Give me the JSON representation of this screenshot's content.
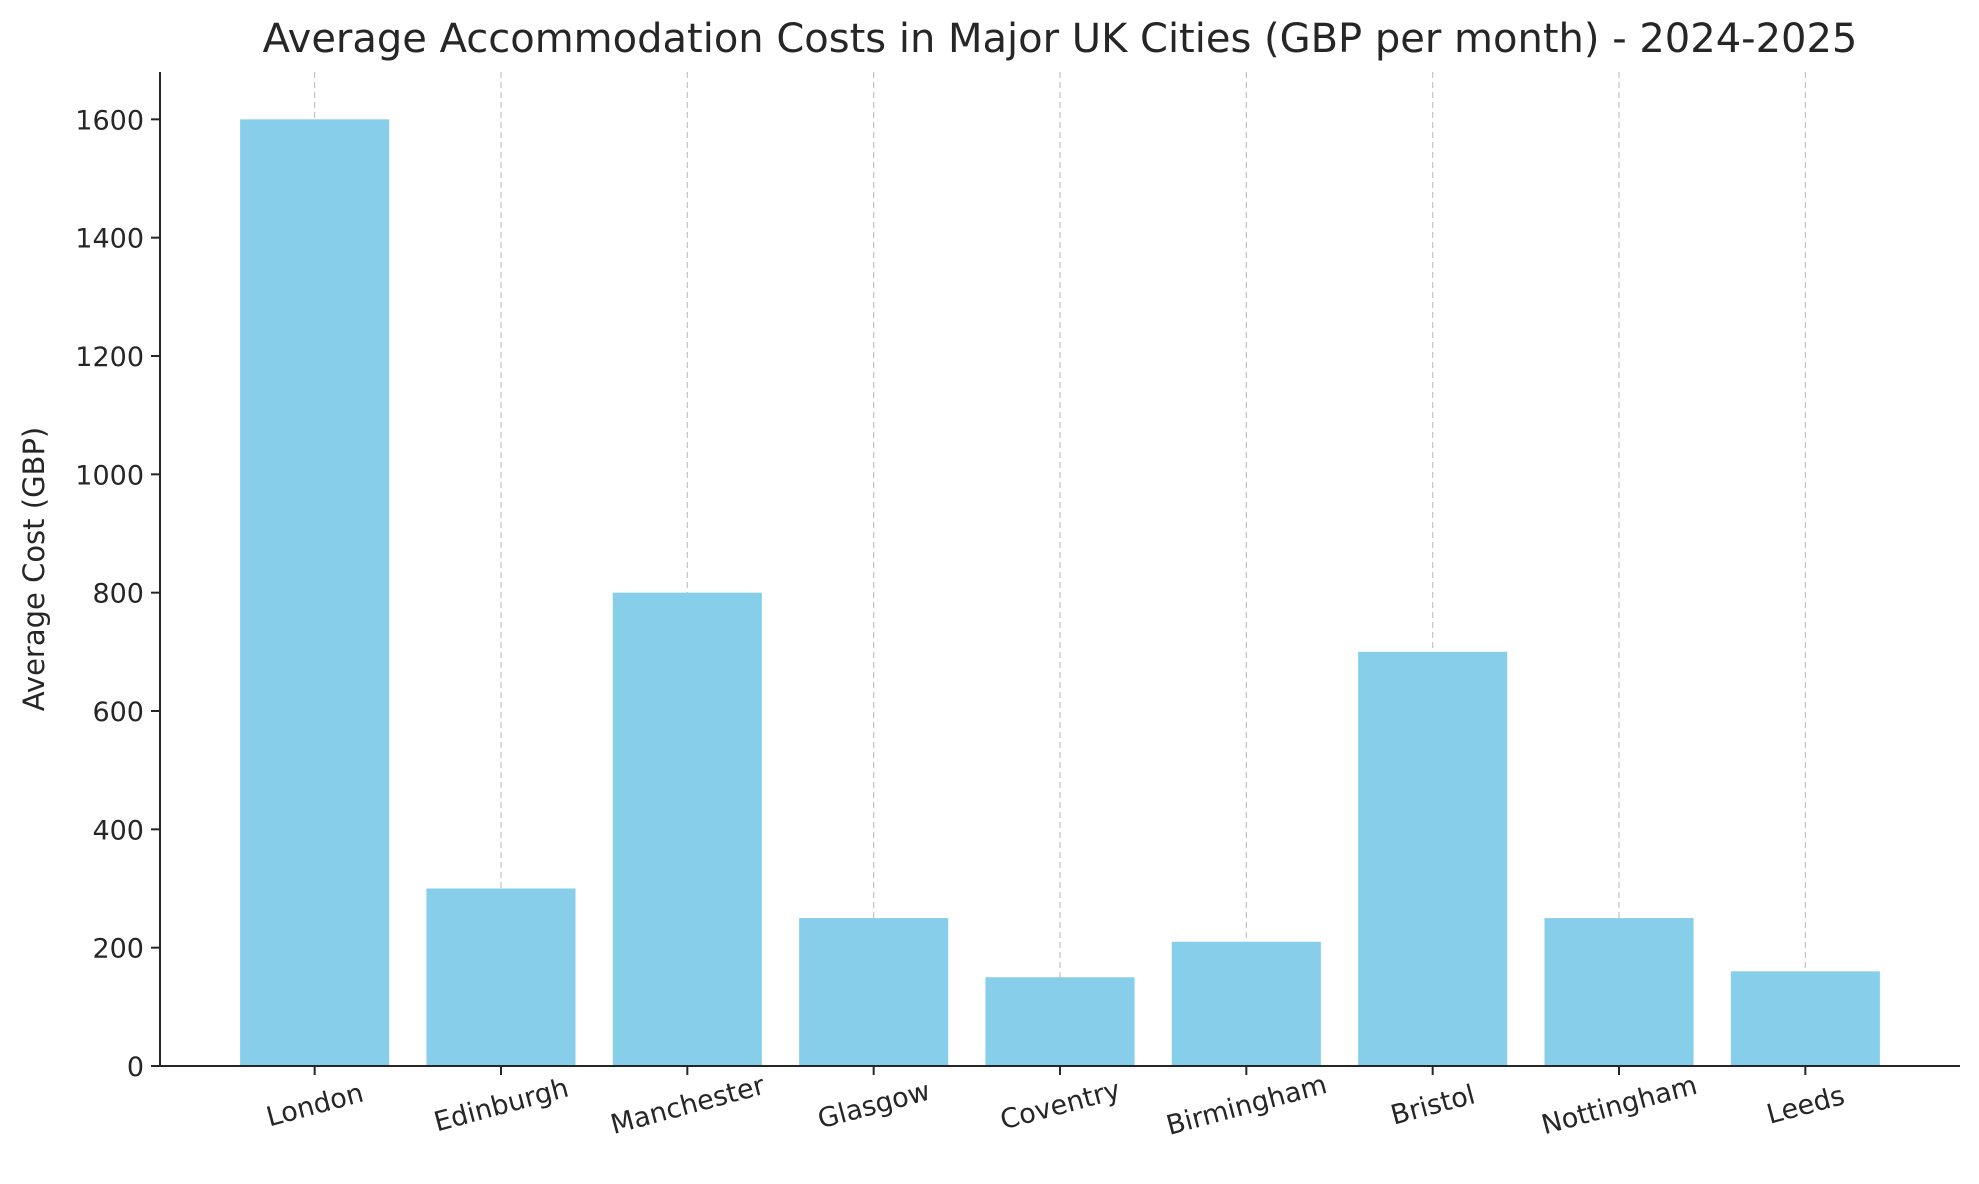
{
  "chart_data": {
    "type": "bar",
    "title": "Average Accommodation Costs in Major UK Cities (GBP per month) - 2024-2025",
    "xlabel": "",
    "ylabel": "Average Cost (GBP)",
    "categories": [
      "London",
      "Edinburgh",
      "Manchester",
      "Glasgow",
      "Coventry",
      "Birmingham",
      "Bristol",
      "Nottingham",
      "Leeds"
    ],
    "values": [
      1600,
      300,
      800,
      250,
      150,
      210,
      700,
      250,
      160
    ],
    "ylim": [
      0,
      1680
    ],
    "yticks": [
      0,
      200,
      400,
      600,
      800,
      1000,
      1200,
      1400,
      1600
    ],
    "bar_color": "#87CEEB",
    "grid": "vertical dashed",
    "xtick_rotation": 15
  }
}
